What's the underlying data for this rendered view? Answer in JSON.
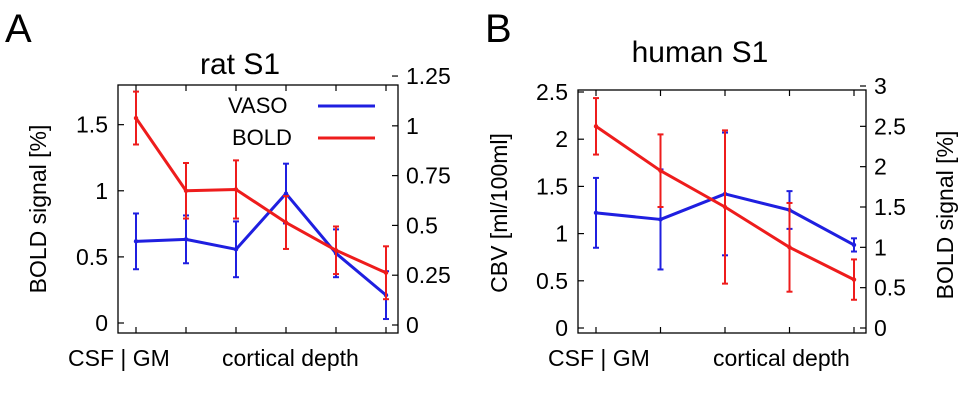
{
  "panels": {
    "a": {
      "letter": "A"
    },
    "b": {
      "letter": "B"
    }
  },
  "chart_data": [
    {
      "type": "line",
      "title": "rat S1",
      "xlabel_left": "CSF | GM",
      "xlabel_right": "cortical depth",
      "ylabel_left": "BOLD signal [%]",
      "ylabel_right": "",
      "x": [
        1,
        2,
        3,
        4,
        5,
        6
      ],
      "xlim": [
        0.8,
        6.0
      ],
      "y_left": {
        "ylim": [
          0,
          1.8
        ],
        "ticks": [
          "0",
          "0.5",
          "1",
          "1.5"
        ],
        "tick_values": [
          0,
          0.5,
          1,
          1.5
        ]
      },
      "y_right": {
        "ylim": [
          0,
          1.2
        ],
        "ticks": [
          "0",
          "0.25",
          "0.5",
          "0.75",
          "1",
          "1.25"
        ],
        "tick_values": [
          0,
          0.25,
          0.5,
          0.75,
          1,
          1.25
        ]
      },
      "legend_position": "top-right",
      "series": [
        {
          "name": "VASO",
          "color": "#1f1fe0",
          "axis": "right",
          "values": [
            0.42,
            0.43,
            0.38,
            0.66,
            0.36,
            0.15
          ],
          "err": [
            0.14,
            0.12,
            0.14,
            0.15,
            0.12,
            0.12
          ]
        },
        {
          "name": "BOLD",
          "color": "#ee1c1c",
          "axis": "left",
          "values": [
            1.55,
            1.0,
            1.01,
            0.76,
            0.55,
            0.38
          ],
          "err": [
            0.2,
            0.21,
            0.22,
            0.2,
            0.18,
            0.2
          ]
        }
      ]
    },
    {
      "type": "line",
      "title": "human S1",
      "xlabel_left": "CSF | GM",
      "xlabel_right": "cortical depth",
      "ylabel_left": "CBV [ml/100ml]",
      "ylabel_right": "BOLD signal [%]",
      "x": [
        1,
        2,
        3,
        4,
        5
      ],
      "xlim": [
        0.95,
        5.0
      ],
      "y_left": {
        "ylim": [
          0,
          2.5
        ],
        "ticks": [
          "0",
          "0.5",
          "1",
          "1.5",
          "2",
          "2.5"
        ],
        "tick_values": [
          0,
          0.5,
          1,
          1.5,
          2,
          2.5
        ]
      },
      "y_right": {
        "ylim": [
          0,
          3
        ],
        "ticks": [
          "0",
          "0.5",
          "1",
          "1.5",
          "2",
          "2.5",
          "3"
        ],
        "tick_values": [
          0,
          0.5,
          1,
          1.5,
          2,
          2.5,
          3
        ]
      },
      "legend_position": "none",
      "series": [
        {
          "name": "CBV",
          "color": "#1f1fe0",
          "axis": "left",
          "values": [
            1.22,
            1.15,
            1.42,
            1.25,
            0.88
          ],
          "err": [
            0.37,
            0.53,
            0.65,
            0.2,
            0.07
          ]
        },
        {
          "name": "BOLD",
          "color": "#ee1c1c",
          "axis": "right",
          "values": [
            2.5,
            1.95,
            1.5,
            1.0,
            0.6
          ],
          "err": [
            0.35,
            0.45,
            0.95,
            0.55,
            0.25
          ]
        }
      ]
    }
  ]
}
